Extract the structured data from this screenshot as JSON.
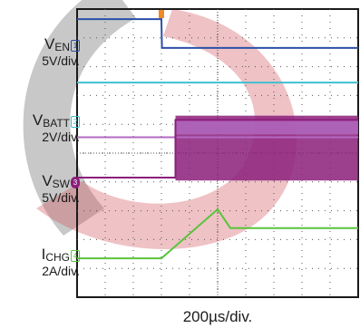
{
  "chart_data": {
    "type": "line",
    "title": "",
    "xlabel": "200µs/div.",
    "channels": [
      {
        "id": "1",
        "name_main": "V",
        "name_sub": "EN",
        "scale": "5V/div.",
        "color": "#2b4fa8",
        "y_div": 0.35,
        "events": [
          {
            "t_div": 0.0,
            "level_div": 0.35
          },
          {
            "t_div": 3.0,
            "level_div": 0.35
          },
          {
            "t_div": 3.02,
            "level_div": 1.35
          },
          {
            "t_div": 10.0,
            "level_div": 1.35
          }
        ]
      },
      {
        "id": "",
        "name_main": "",
        "name_sub": "",
        "scale": "",
        "color": "#3fbfcf",
        "events": [
          {
            "t_div": 0.0,
            "level_div": 2.55
          },
          {
            "t_div": 10.0,
            "level_div": 2.55
          }
        ]
      },
      {
        "id": "2",
        "name_main": "V",
        "name_sub": "BATT",
        "scale": "2V/div.",
        "color": "#b36ac2",
        "events": [
          {
            "t_div": 0.0,
            "level_div": 4.45
          },
          {
            "t_div": 3.0,
            "level_div": 4.45
          },
          {
            "t_div": 3.5,
            "level_div": 4.45
          },
          {
            "t_div": 10.0,
            "level_div": 4.45
          }
        ]
      },
      {
        "id": "3",
        "name_main": "V",
        "name_sub": "SW",
        "scale": "5V/div.",
        "color": "#8b1e7a",
        "events": [
          {
            "t_div": 0.0,
            "level_div": 5.85
          },
          {
            "t_div": 3.5,
            "level_div": 5.85
          },
          {
            "t_div": 3.5,
            "level_div": 3.85
          },
          {
            "t_div": 10.0,
            "level_div": 3.85
          }
        ]
      },
      {
        "id": "4",
        "name_main": "I",
        "name_sub": "CHG",
        "scale": "2A/div.",
        "color": "#59c43c",
        "events": [
          {
            "t_div": 0.0,
            "level_div": 8.65
          },
          {
            "t_div": 3.0,
            "level_div": 8.65
          },
          {
            "t_div": 5.0,
            "level_div": 6.95
          },
          {
            "t_div": 5.45,
            "level_div": 7.6
          },
          {
            "t_div": 10.0,
            "level_div": 7.6
          }
        ]
      }
    ],
    "trigger_time_div": 3.0,
    "grid": true,
    "x_divisions": 10,
    "y_divisions": 10
  },
  "colors": {
    "grid": "#555555",
    "frame": "#1a1a1a",
    "trigger": "#f08a24",
    "watermark_red": "#d2505a",
    "watermark_gray": "#9a9a9a"
  }
}
